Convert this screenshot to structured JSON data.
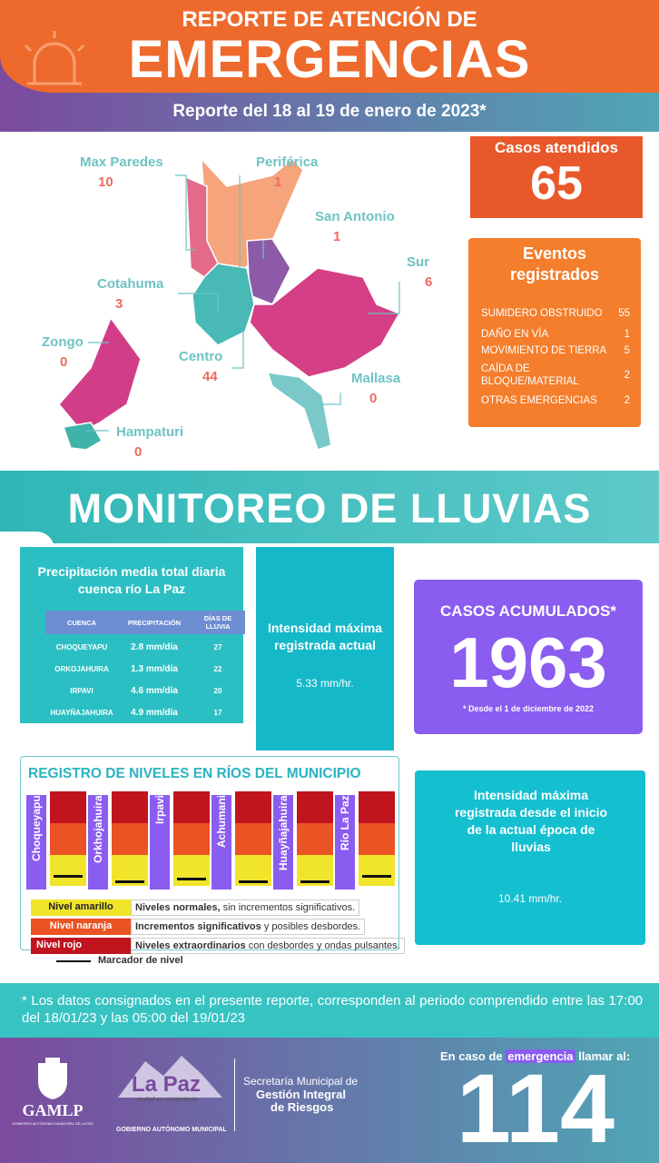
{
  "header": {
    "title_line1": "REPORTE DE ATENCIÓN DE",
    "title_line2": "EMERGENCIAS",
    "subtitle": "Reporte del 18 al 19 de enero de 2023*"
  },
  "map": {
    "districts": [
      {
        "name": "Max Paredes",
        "value": 10
      },
      {
        "name": "Periférica",
        "value": 1
      },
      {
        "name": "San Antonio",
        "value": 1
      },
      {
        "name": "Sur",
        "value": 6
      },
      {
        "name": "Cotahuma",
        "value": 3
      },
      {
        "name": "Zongo",
        "value": 0
      },
      {
        "name": "Centro",
        "value": 44
      },
      {
        "name": "Mallasa",
        "value": 0
      },
      {
        "name": "Hampaturi",
        "value": 0
      }
    ]
  },
  "cases": {
    "label": "Casos atendidos",
    "value": 65
  },
  "events": {
    "title": "Eventos registrados",
    "items": [
      {
        "label": "SUMIDERO OBSTRUIDO",
        "count": 55
      },
      {
        "label": "DAÑO EN VÍA",
        "count": 1
      },
      {
        "label": "MOVIMIENTO DE TIERRA",
        "count": 5
      },
      {
        "label": "CAÍDA DE BLOQUE/MATERIAL",
        "count": 2
      },
      {
        "label": "OTRAS EMERGENCIAS",
        "count": 2
      }
    ]
  },
  "rain_title": "MONITOREO DE LLUVIAS",
  "precipitation": {
    "title": "Precipitación media total diaria cuenca río La Paz",
    "headers": [
      "CUENCA",
      "PRECIPITACIÓN",
      "DÍAS DE LLUVIA"
    ],
    "rows": [
      [
        "CHOQUEYAPU",
        "2.8 mm/día",
        "27"
      ],
      [
        "ORKOJAHUIRA",
        "1.3 mm/día",
        "22"
      ],
      [
        "IRPAVI",
        "4.6 mm/día",
        "20"
      ],
      [
        "HUAYÑAJAHUIRA",
        "4.9 mm/día",
        "17"
      ]
    ]
  },
  "intensity_current": {
    "label": "Intensidad máxima registrada actual",
    "value": "5.33 mm/hr."
  },
  "accumulated": {
    "label": "CASOS ACUMULADOS*",
    "value": 1963,
    "note": "* Desde el 1 de diciembre de 2022"
  },
  "rivers": {
    "title": "REGISTRO DE NIVELES EN RÍOS DEL MUNICIPIO",
    "names": [
      "Choqueyapu",
      "Orkhojahuira",
      "Irpavi",
      "Achumani",
      "Huayñajahuira",
      "Río La Paz"
    ],
    "legend": [
      {
        "level": "Nivel amarillo",
        "bold": "Niveles normales,",
        "rest": "sin incrementos significativos."
      },
      {
        "level": "Nivel naranja",
        "bold": "Incrementos significativos",
        "rest": "y posibles desbordes."
      },
      {
        "level": "Nivel rojo",
        "bold": "Niveles extraordinarios",
        "rest": "con desbordes y ondas pulsantes."
      }
    ],
    "marker_label": "Marcador de nivel"
  },
  "intensity_season": {
    "label": "Intensidad máxima registrada desde el inicio de la actual época de lluvias",
    "value": "10.41 mm/hr."
  },
  "footnote": "* Los datos consignados en el presente reporte, corresponden al periodo comprendido entre las 17:00 del 18/01/23 y las 05:00 del 19/01/23",
  "footer": {
    "gamlp": "GAMLP",
    "gamlp_sub": "GOBIERNO AUTÓNOMO MUNICIPAL DE LA PAZ",
    "lapaz": "La Paz",
    "lapaz_tag": "ciudad en movimiento",
    "lapaz_sub": "GOBIERNO AUTÓNOMO MUNICIPAL",
    "secretaria": [
      "Secretaría Municipal de",
      "Gestión Integral",
      "de Riesgos"
    ],
    "call_pre": "En caso de",
    "call_word": "emergencia",
    "call_post": "llamar al:",
    "number": "114"
  }
}
